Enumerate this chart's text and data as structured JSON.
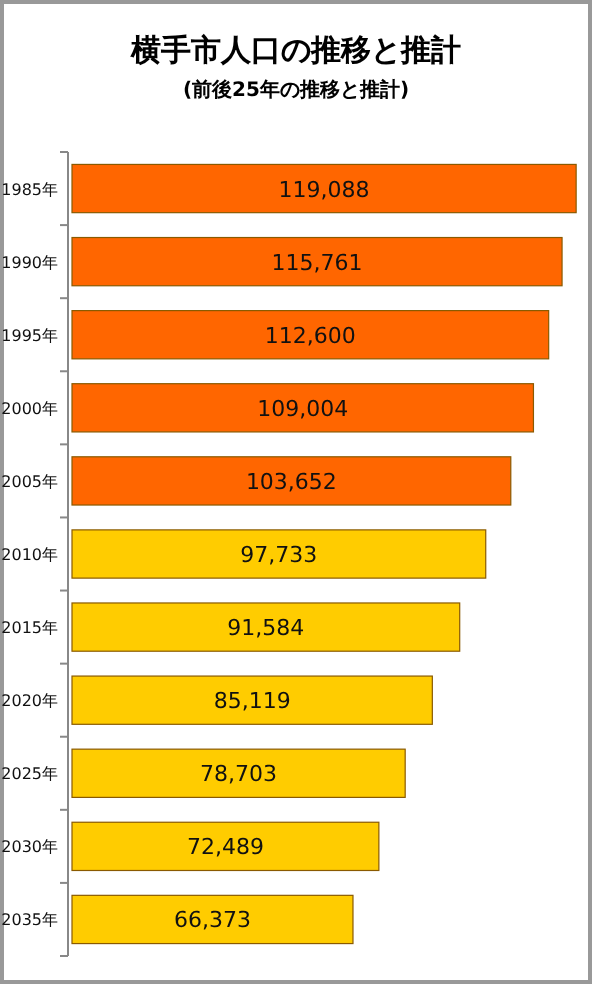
{
  "chart_data": {
    "type": "bar",
    "orientation": "horizontal",
    "title": "横手市人口の推移と推計",
    "subtitle": "(前後25年の推移と推計)",
    "categories": [
      "1985年",
      "1990年",
      "1995年",
      "2000年",
      "2005年",
      "2010年",
      "2015年",
      "2020年",
      "2025年",
      "2030年",
      "2035年"
    ],
    "values": [
      119088,
      115761,
      112600,
      109004,
      103652,
      97733,
      91584,
      85119,
      78703,
      72489,
      66373
    ],
    "value_labels": [
      "119,088",
      "115,761",
      "112,600",
      "109,004",
      "103,652",
      "97,733",
      "91,584",
      "85,119",
      "78,703",
      "72,489",
      "66,373"
    ],
    "colors": [
      "#ff6600",
      "#ff6600",
      "#ff6600",
      "#ff6600",
      "#ff6600",
      "#ffcc00",
      "#ffcc00",
      "#ffcc00",
      "#ffcc00",
      "#ffcc00",
      "#ffcc00"
    ],
    "xlim": [
      0,
      120000
    ],
    "tick_labels": "y"
  }
}
